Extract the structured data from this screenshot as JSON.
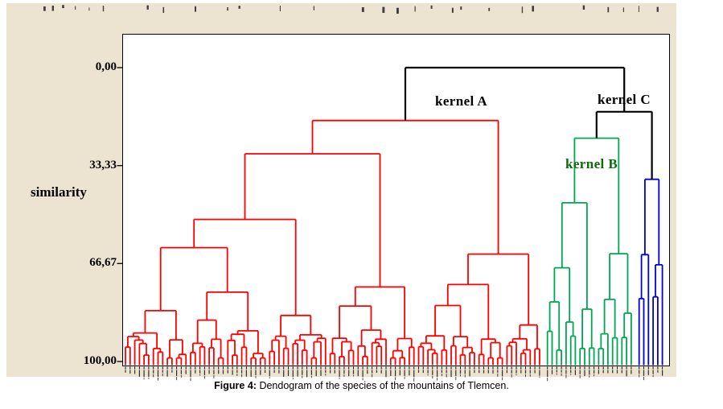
{
  "figure": {
    "caption_prefix": "Figure 4:",
    "caption_text": " Dendogram of the species of the mountains of Tlemcen."
  },
  "axis": {
    "ylabel": "similarity",
    "y_ticks": [
      "0,00",
      "33,33",
      "66,67",
      "100,00"
    ]
  },
  "labels": {
    "kernel_a": "kernel A",
    "kernel_b": "kernel B",
    "kernel_c": "kernel C"
  },
  "colors": {
    "cluster_a": "#ff0000",
    "cluster_b": "#00a651",
    "cluster_c": "#0000dd",
    "connector": "#000000",
    "label_a": "#000000",
    "label_b": "#0b6b0b",
    "label_c": "#000000",
    "panel_bg": "#ece4d1",
    "plot_bg": "#ffffff"
  },
  "chart_data": {
    "type": "dendrogram",
    "orientation": "vertical-leaves-down",
    "title": "",
    "ylabel": "similarity",
    "y_axis": {
      "min": 0,
      "max": 100,
      "inverted_top_to_bottom": true,
      "tick_values": [
        0,
        33.33,
        66.67,
        100
      ],
      "tick_labels": [
        "0,00",
        "33,33",
        "66,67",
        "100,00"
      ]
    },
    "x_axis": {
      "leaf_tick_labels": "dense species-name tick labels, illegible at this resolution"
    },
    "clusters": [
      {
        "name": "kernel A",
        "color": "#ff0000",
        "leaf_count": 90,
        "apex_similarity": 18
      },
      {
        "name": "kernel B",
        "color": "#00a651",
        "leaf_count": 19,
        "apex_similarity": 24
      },
      {
        "name": "kernel C",
        "color": "#0000dd",
        "leaf_count": 6,
        "apex_similarity": 38
      }
    ],
    "joins": [
      {
        "members": [
          "kernel B",
          "kernel C"
        ],
        "similarity": 15
      },
      {
        "members": [
          "kernel A",
          "kernel B + kernel C"
        ],
        "similarity": 0
      }
    ]
  }
}
